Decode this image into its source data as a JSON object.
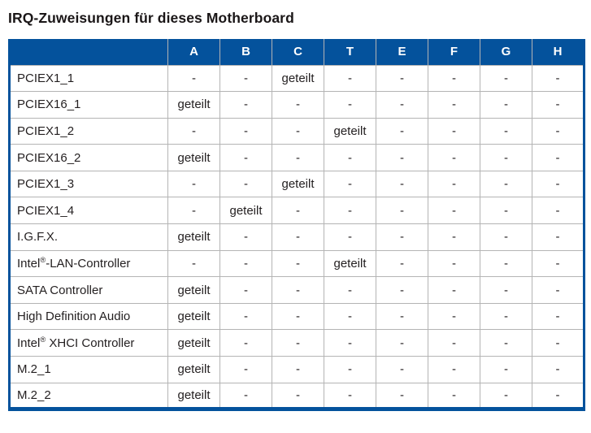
{
  "title": "IRQ-Zuweisungen für dieses Motherboard",
  "colors": {
    "header_bg": "#04529c",
    "table_border": "#04529c",
    "grid_line": "#b4b4b4",
    "header_text": "#ffffff",
    "body_text": "#231f20"
  },
  "table": {
    "columns": [
      "A",
      "B",
      "C",
      "T",
      "E",
      "F",
      "G",
      "H"
    ],
    "shared_label": "geteilt",
    "empty_label": "-",
    "rows": [
      {
        "label": "PCIEX1_1",
        "values": [
          "-",
          "-",
          "geteilt",
          "-",
          "-",
          "-",
          "-",
          "-"
        ]
      },
      {
        "label": "PCIEX16_1",
        "values": [
          "geteilt",
          "-",
          "-",
          "-",
          "-",
          "-",
          "-",
          "-"
        ]
      },
      {
        "label": "PCIEX1_2",
        "values": [
          "-",
          "-",
          "-",
          "geteilt",
          "-",
          "-",
          "-",
          "-"
        ]
      },
      {
        "label": "PCIEX16_2",
        "values": [
          "geteilt",
          "-",
          "-",
          "-",
          "-",
          "-",
          "-",
          "-"
        ]
      },
      {
        "label": "PCIEX1_3",
        "values": [
          "-",
          "-",
          "geteilt",
          "-",
          "-",
          "-",
          "-",
          "-"
        ]
      },
      {
        "label": "PCIEX1_4",
        "values": [
          "-",
          "geteilt",
          "-",
          "-",
          "-",
          "-",
          "-",
          "-"
        ]
      },
      {
        "label": "I.G.F.X.",
        "values": [
          "geteilt",
          "-",
          "-",
          "-",
          "-",
          "-",
          "-",
          "-"
        ]
      },
      {
        "label": "Intel®-LAN-Controller",
        "values": [
          "-",
          "-",
          "-",
          "geteilt",
          "-",
          "-",
          "-",
          "-"
        ]
      },
      {
        "label": "SATA Controller",
        "values": [
          "geteilt",
          "-",
          "-",
          "-",
          "-",
          "-",
          "-",
          "-"
        ]
      },
      {
        "label": "High Definition Audio",
        "values": [
          "geteilt",
          "-",
          "-",
          "-",
          "-",
          "-",
          "-",
          "-"
        ]
      },
      {
        "label": "Intel® XHCI Controller",
        "values": [
          "geteilt",
          "-",
          "-",
          "-",
          "-",
          "-",
          "-",
          "-"
        ]
      },
      {
        "label": "M.2_1",
        "values": [
          "geteilt",
          "-",
          "-",
          "-",
          "-",
          "-",
          "-",
          "-"
        ]
      },
      {
        "label": "M.2_2",
        "values": [
          "geteilt",
          "-",
          "-",
          "-",
          "-",
          "-",
          "-",
          "-"
        ]
      }
    ]
  }
}
